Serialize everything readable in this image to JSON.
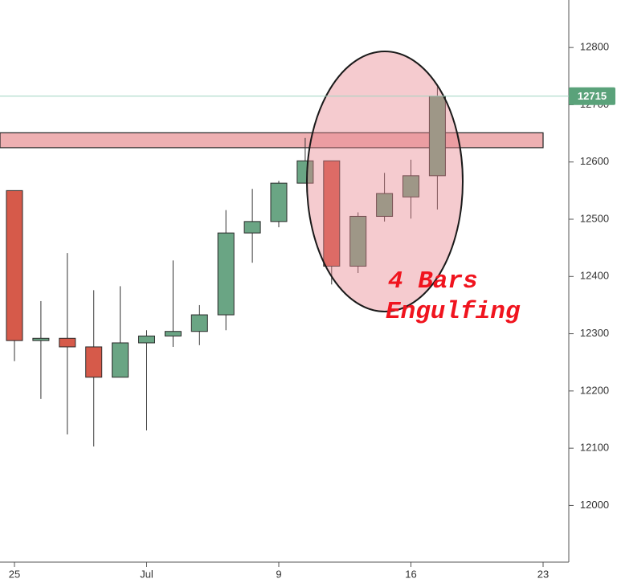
{
  "chart_data": {
    "type": "candlestick",
    "categories": [
      "25",
      null,
      null,
      null,
      null,
      "Jul",
      null,
      null,
      null,
      null,
      "9",
      null,
      null,
      null,
      null,
      "16",
      null,
      null,
      null,
      null,
      "23"
    ],
    "open": [
      12550,
      12288,
      12292,
      12277,
      12224,
      12284,
      12296,
      12304,
      12333,
      12476,
      12496,
      12563,
      12602,
      12418,
      12505,
      12539,
      12576,
      null,
      null,
      null,
      null
    ],
    "high": [
      12550,
      12357,
      12441,
      12376,
      12383,
      12306,
      12428,
      12350,
      12516,
      12553,
      12567,
      12642,
      12602,
      12512,
      12581,
      12604,
      12731,
      null,
      null,
      null,
      null
    ],
    "low": [
      12252,
      12186,
      12124,
      12103,
      12224,
      12131,
      12277,
      12280,
      12306,
      12424,
      12486,
      12563,
      12386,
      12406,
      12496,
      12501,
      12517,
      null,
      null,
      null,
      null
    ],
    "close": [
      12288,
      12292,
      12277,
      12224,
      12284,
      12296,
      12304,
      12333,
      12476,
      12496,
      12563,
      12602,
      12418,
      12505,
      12545,
      12576,
      12715,
      null,
      null,
      null,
      null
    ],
    "up_color": "#6aa584",
    "down_color": "#d65a4a",
    "ylim": [
      11901,
      12883
    ],
    "yticks": [
      12000,
      12100,
      12200,
      12300,
      12400,
      12500,
      12600,
      12700,
      12800
    ],
    "zone": [
      12625,
      12651
    ],
    "zone_color": "#eeb0b2",
    "last_price": 12715,
    "last_price_color": "#5aa27a",
    "annotation": [
      "4 Bars",
      "Engulfing"
    ]
  }
}
